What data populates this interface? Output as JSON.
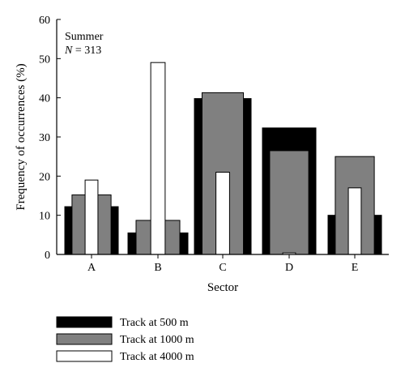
{
  "chart_data": {
    "type": "bar",
    "annotation": {
      "line1": "Summer",
      "line2_var": "N",
      "line2_rest": " = 313"
    },
    "xlabel": "Sector",
    "ylabel": "Frequency of occurrences (%)",
    "ylim": [
      0,
      60
    ],
    "yticks": [
      0,
      10,
      20,
      30,
      40,
      50,
      60
    ],
    "categories": [
      "A",
      "B",
      "C",
      "D",
      "E"
    ],
    "series": [
      {
        "name": "Track at 500 m",
        "color": "#000000",
        "values": [
          12.2,
          5.5,
          39.8,
          32.3,
          10
        ]
      },
      {
        "name": "Track at 1000 m",
        "color": "#808080",
        "values": [
          15.2,
          8.7,
          41.3,
          26.5,
          25
        ]
      },
      {
        "name": "Track at 4000 m",
        "color": "#ffffff",
        "values": [
          19,
          49,
          21,
          0.4,
          17
        ]
      }
    ],
    "legend_position": "bottom-left",
    "grid": false
  }
}
